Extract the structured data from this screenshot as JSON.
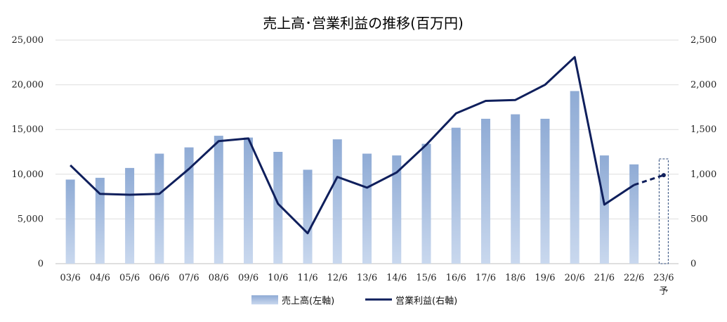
{
  "chart_data": {
    "type": "bar",
    "title": "売上高･営業利益の推移(百万円)",
    "categories": [
      "03/6",
      "04/6",
      "05/6",
      "06/6",
      "07/6",
      "08/6",
      "09/6",
      "10/6",
      "11/6",
      "12/6",
      "13/6",
      "14/6",
      "15/6",
      "16/6",
      "17/6",
      "18/6",
      "19/6",
      "20/6",
      "21/6",
      "22/6",
      "23/6"
    ],
    "forecast_suffix": "予",
    "y_left": {
      "ticks": [
        "0",
        "5,000",
        "10,000",
        "15,000",
        "20,000",
        "25,000"
      ],
      "ylim": [
        0,
        25000
      ]
    },
    "y_right": {
      "ticks": [
        "0",
        "500",
        "1,000",
        "1,500",
        "2,000",
        "2,500"
      ],
      "ylim": [
        0,
        2500
      ]
    },
    "series": [
      {
        "name": "売上高(左軸)",
        "type": "bar",
        "axis": "left",
        "color": "#9db6da",
        "values": [
          9400,
          9600,
          10700,
          12300,
          13000,
          14300,
          14100,
          12500,
          10500,
          13900,
          12300,
          12100,
          13400,
          15200,
          16200,
          16700,
          16200,
          19300,
          12100,
          11100,
          null
        ],
        "forecast_index": 20
      },
      {
        "name": "営業利益(右軸)",
        "type": "line",
        "axis": "right",
        "color": "#0f1f5c",
        "values": [
          1100,
          780,
          770,
          780,
          1060,
          1370,
          1400,
          670,
          340,
          970,
          850,
          1020,
          1330,
          1680,
          1820,
          1830,
          2000,
          2310,
          660,
          880,
          990
        ],
        "forecast_from_index": 19
      }
    ],
    "grid": true,
    "legend": "bottom"
  }
}
